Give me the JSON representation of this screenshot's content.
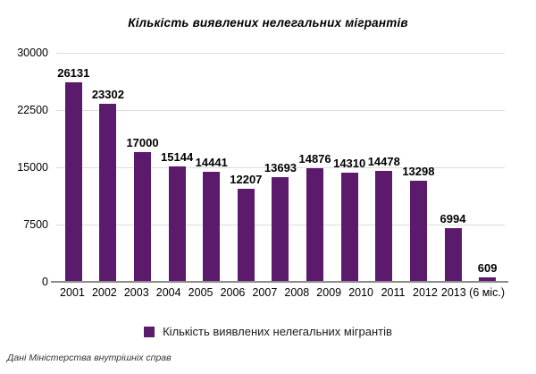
{
  "chart_data": {
    "type": "bar",
    "title": "Кількість виявлених нелегальних мігрантів",
    "categories": [
      "2001",
      "2002",
      "2003",
      "2004",
      "2005",
      "2006",
      "2007",
      "2008",
      "2009",
      "2010",
      "2011",
      "2012",
      "2013 (6 міс.)"
    ],
    "values": [
      26131,
      23302,
      17000,
      15144,
      14441,
      12207,
      13693,
      14876,
      14310,
      14478,
      13298,
      6994,
      609
    ],
    "xlabel": "",
    "ylabel": "",
    "ylim": [
      0,
      30000
    ],
    "yticks": [
      0,
      7500,
      15000,
      22500,
      30000
    ],
    "grid": true,
    "legend_position": "bottom",
    "bar_color": "#5B1A6B",
    "gridline_color": "#dddddd",
    "axis_line_color": "#8c8c8c"
  },
  "legend": {
    "label": "Кількість виявлених нелегальних мігрантів"
  },
  "footer": {
    "source": "Дані Міністерства внутрішніх справ"
  }
}
